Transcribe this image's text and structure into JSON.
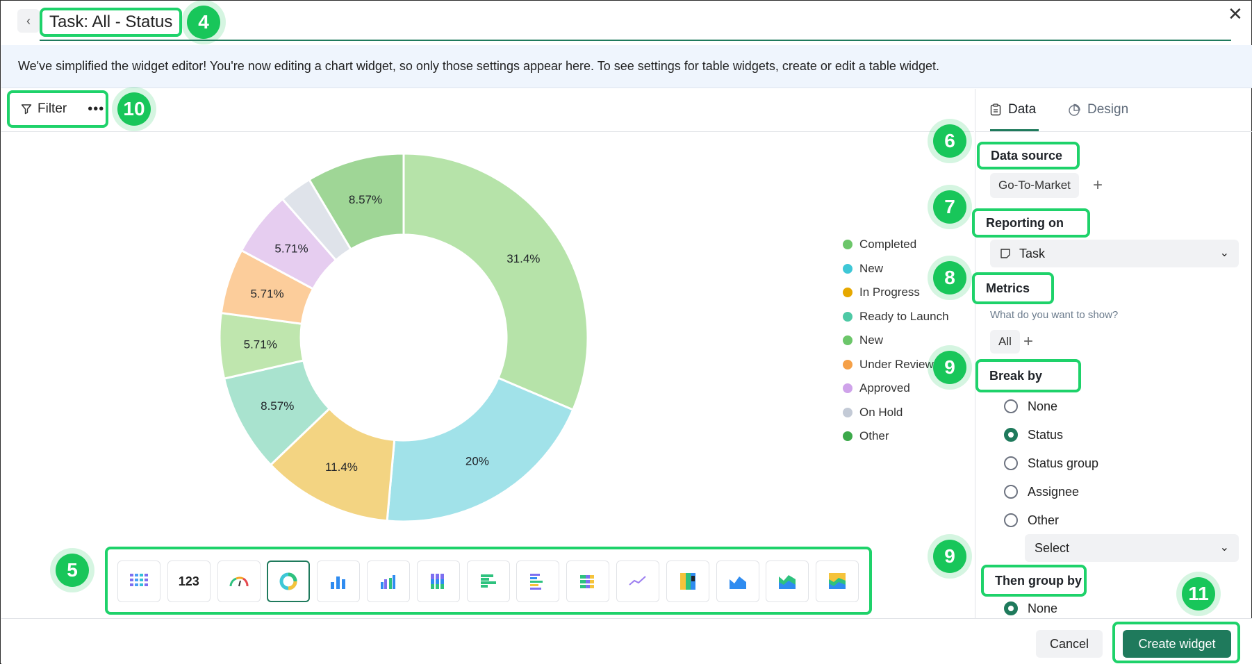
{
  "header": {
    "back_icon": "chevron-left-icon",
    "title": "Task: All - Status",
    "close_icon": "close-icon"
  },
  "badges": {
    "title": "4",
    "chart_types": "5",
    "data_source": "6",
    "reporting_on": "7",
    "metrics": "8",
    "break_by": "9",
    "then_group_by": "9",
    "filter": "10",
    "create": "11"
  },
  "banner": {
    "text": "We've simplified the widget editor! You're now editing a chart widget, so only those settings appear here. To see settings for table widgets, create or edit a table widget."
  },
  "toolbar": {
    "filter_label": "Filter",
    "filter_icon": "filter-icon",
    "more_label": "•••"
  },
  "chart_data": {
    "type": "pie",
    "donut": true,
    "slices": [
      {
        "label": "Completed",
        "value": 31.4,
        "display": "31.4%",
        "color": "#b6e3a9"
      },
      {
        "label": "New",
        "value": 20.0,
        "display": "20%",
        "color": "#a1e2e9"
      },
      {
        "label": "In Progress",
        "value": 11.4,
        "display": "11.4%",
        "color": "#f3d482"
      },
      {
        "label": "Ready to Launch",
        "value": 8.57,
        "display": "8.57%",
        "color": "#a9e3cf"
      },
      {
        "label": "New",
        "value": 5.71,
        "display": "5.71%",
        "color": "#bfe6ae"
      },
      {
        "label": "Under Review",
        "value": 5.71,
        "display": "5.71%",
        "color": "#fccd9b"
      },
      {
        "label": "Approved",
        "value": 5.71,
        "display": "5.71%",
        "color": "#e6cdf0"
      },
      {
        "label": "On Hold",
        "value": 2.86,
        "display": "",
        "color": "#dfe3ea"
      },
      {
        "label": "Other",
        "value": 8.57,
        "display": "8.57%",
        "color": "#9fd696"
      }
    ],
    "legend": [
      {
        "label": "Completed",
        "color": "#6cc66a"
      },
      {
        "label": "New",
        "color": "#3ec7d6"
      },
      {
        "label": "In Progress",
        "color": "#e6a800"
      },
      {
        "label": "Ready to Launch",
        "color": "#4ec9a5"
      },
      {
        "label": "New",
        "color": "#6cc66a"
      },
      {
        "label": "Under Review",
        "color": "#f5a047"
      },
      {
        "label": "Approved",
        "color": "#cfa3ea"
      },
      {
        "label": "On Hold",
        "color": "#c3cad6"
      },
      {
        "label": "Other",
        "color": "#3ca94a"
      }
    ]
  },
  "chart_types": [
    {
      "name": "table-chart-icon"
    },
    {
      "name": "number-chart-icon",
      "label": "123"
    },
    {
      "name": "gauge-chart-icon"
    },
    {
      "name": "donut-chart-icon",
      "active": true
    },
    {
      "name": "bar-chart-icon"
    },
    {
      "name": "grouped-bar-chart-icon"
    },
    {
      "name": "stacked-bar-chart-icon"
    },
    {
      "name": "horizontal-bar-chart-icon"
    },
    {
      "name": "horizontal-grouped-bar-chart-icon"
    },
    {
      "name": "horizontal-stacked-bar-chart-icon"
    },
    {
      "name": "line-chart-icon"
    },
    {
      "name": "stacked-column-chart-icon"
    },
    {
      "name": "area-chart-icon"
    },
    {
      "name": "multi-area-chart-icon"
    },
    {
      "name": "stacked-area-chart-icon"
    }
  ],
  "panel": {
    "tabs": [
      {
        "label": "Data",
        "icon": "clipboard-icon",
        "active": true
      },
      {
        "label": "Design",
        "icon": "pie-chart-icon"
      }
    ],
    "data_source_label": "Data source",
    "data_source_value": "Go-To-Market",
    "reporting_on_label": "Reporting on",
    "reporting_on_value": "Task",
    "metrics_label": "Metrics",
    "metrics_hint": "What do you want to show?",
    "metrics_value": "All",
    "break_by_label": "Break by",
    "break_by_options": [
      {
        "label": "None",
        "selected": false
      },
      {
        "label": "Status",
        "selected": true
      },
      {
        "label": "Status group",
        "selected": false
      },
      {
        "label": "Assignee",
        "selected": false
      },
      {
        "label": "Other",
        "selected": false
      }
    ],
    "other_select_placeholder": "Select",
    "then_group_by_label": "Then group by",
    "then_group_by_options": [
      {
        "label": "None",
        "selected": true
      }
    ]
  },
  "footer": {
    "cancel_label": "Cancel",
    "create_label": "Create widget"
  },
  "colors": {
    "accent": "#1f7a5c",
    "annotation": "#1ed26a",
    "banner_bg": "#eff5fd"
  }
}
